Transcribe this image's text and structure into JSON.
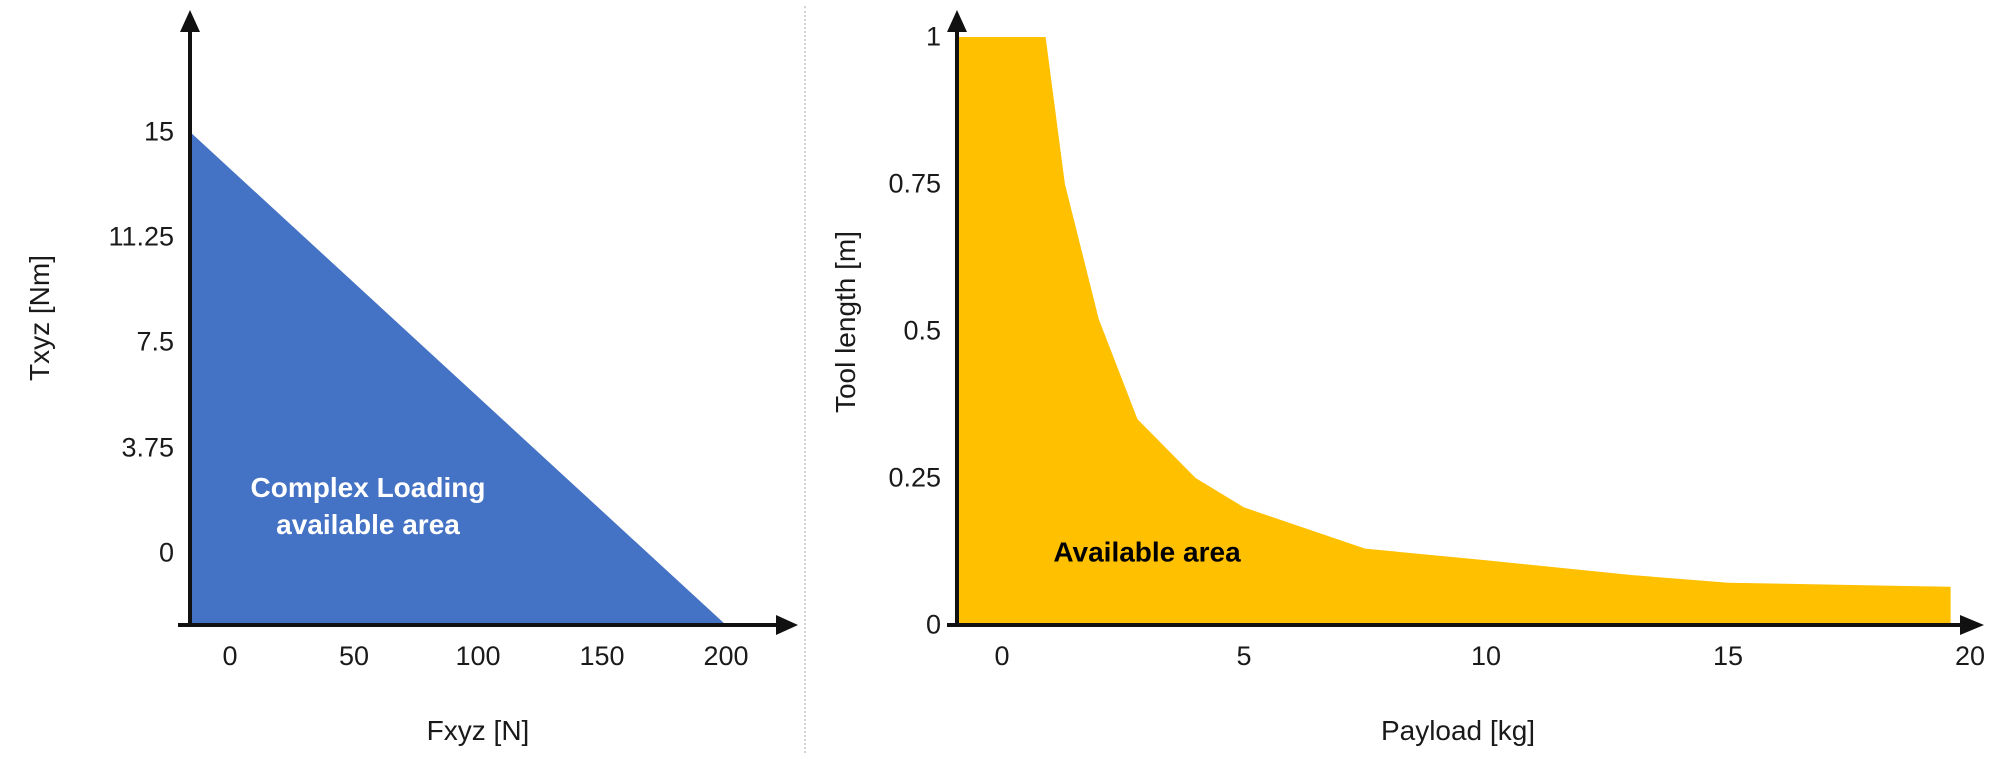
{
  "figure": {
    "background_color": "#ffffff",
    "axis_color": "#111111"
  },
  "chart_data": [
    {
      "id": "complex-loading",
      "type": "area",
      "xlabel": "Fxyz [N]",
      "ylabel": "Txyz [Nm]",
      "area_label": [
        "Complex Loading",
        "available area"
      ],
      "area_label_color": "#ffffff",
      "fill_color": "#4472C4",
      "axis_color": "#111111",
      "x_ticks": [
        "0",
        "50",
        "100",
        "150",
        "200"
      ],
      "y_ticks": [
        "15",
        "11.25",
        "7.5",
        "3.75",
        "0"
      ],
      "xlim": [
        0,
        200
      ],
      "ylim": [
        0,
        15
      ],
      "legend": "none",
      "grid": "off",
      "boundary_points": [
        [
          0,
          15
        ],
        [
          200,
          0
        ]
      ]
    },
    {
      "id": "payload-tool-length",
      "type": "area",
      "xlabel": "Payload [kg]",
      "ylabel": "Tool length [m]",
      "area_label": [
        "Available area"
      ],
      "area_label_color": "#000000",
      "fill_color": "#FFC000",
      "axis_color": "#111111",
      "x_ticks": [
        "0",
        "5",
        "10",
        "15",
        "20"
      ],
      "y_ticks": [
        "1",
        "0.75",
        "0.5",
        "0.25",
        "0"
      ],
      "xlim": [
        0,
        20
      ],
      "ylim": [
        0,
        1
      ],
      "legend": "none",
      "grid": "off",
      "boundary_points": [
        [
          0,
          1
        ],
        [
          0.9,
          1
        ],
        [
          1.3,
          0.75
        ],
        [
          2,
          0.52
        ],
        [
          2.8,
          0.35
        ],
        [
          4,
          0.25
        ],
        [
          5,
          0.2
        ],
        [
          7.5,
          0.13
        ],
        [
          10,
          0.11
        ],
        [
          13,
          0.085
        ],
        [
          15,
          0.072
        ],
        [
          19.6,
          0.065
        ]
      ]
    }
  ]
}
